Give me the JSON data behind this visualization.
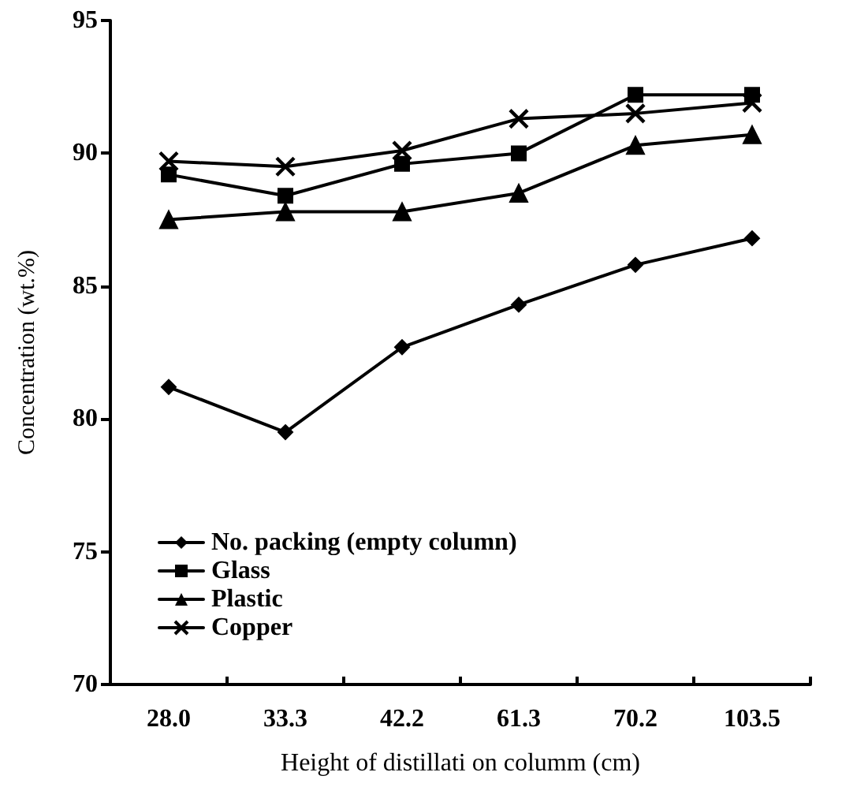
{
  "chart_data": {
    "type": "line",
    "xlabel": "Height of distillati on columm (cm)",
    "ylabel": "Concentration (wt.%)",
    "categories": [
      "28.0",
      "33.3",
      "42.2",
      "61.3",
      "70.2",
      "103.5"
    ],
    "ylim": [
      70,
      95
    ],
    "yticks": [
      70,
      75,
      80,
      85,
      90,
      95
    ],
    "grid": false,
    "legend": "bottom left",
    "line_style": "solid",
    "series": [
      {
        "name": "No. packing (empty column)",
        "color": "#000000",
        "marker": "diamond",
        "values": [
          81.2,
          79.5,
          82.7,
          84.3,
          85.8,
          86.8
        ]
      },
      {
        "name": "Glass",
        "color": "#000000",
        "marker": "square",
        "values": [
          89.2,
          88.4,
          89.6,
          90.0,
          92.2,
          92.2
        ]
      },
      {
        "name": "Plastic",
        "color": "#000000",
        "marker": "triangle",
        "values": [
          87.5,
          87.8,
          87.8,
          88.5,
          90.3,
          90.7
        ]
      },
      {
        "name": "Copper",
        "color": "#000000",
        "marker": "cross",
        "values": [
          89.7,
          89.5,
          90.1,
          91.3,
          91.5,
          91.9
        ]
      }
    ]
  }
}
